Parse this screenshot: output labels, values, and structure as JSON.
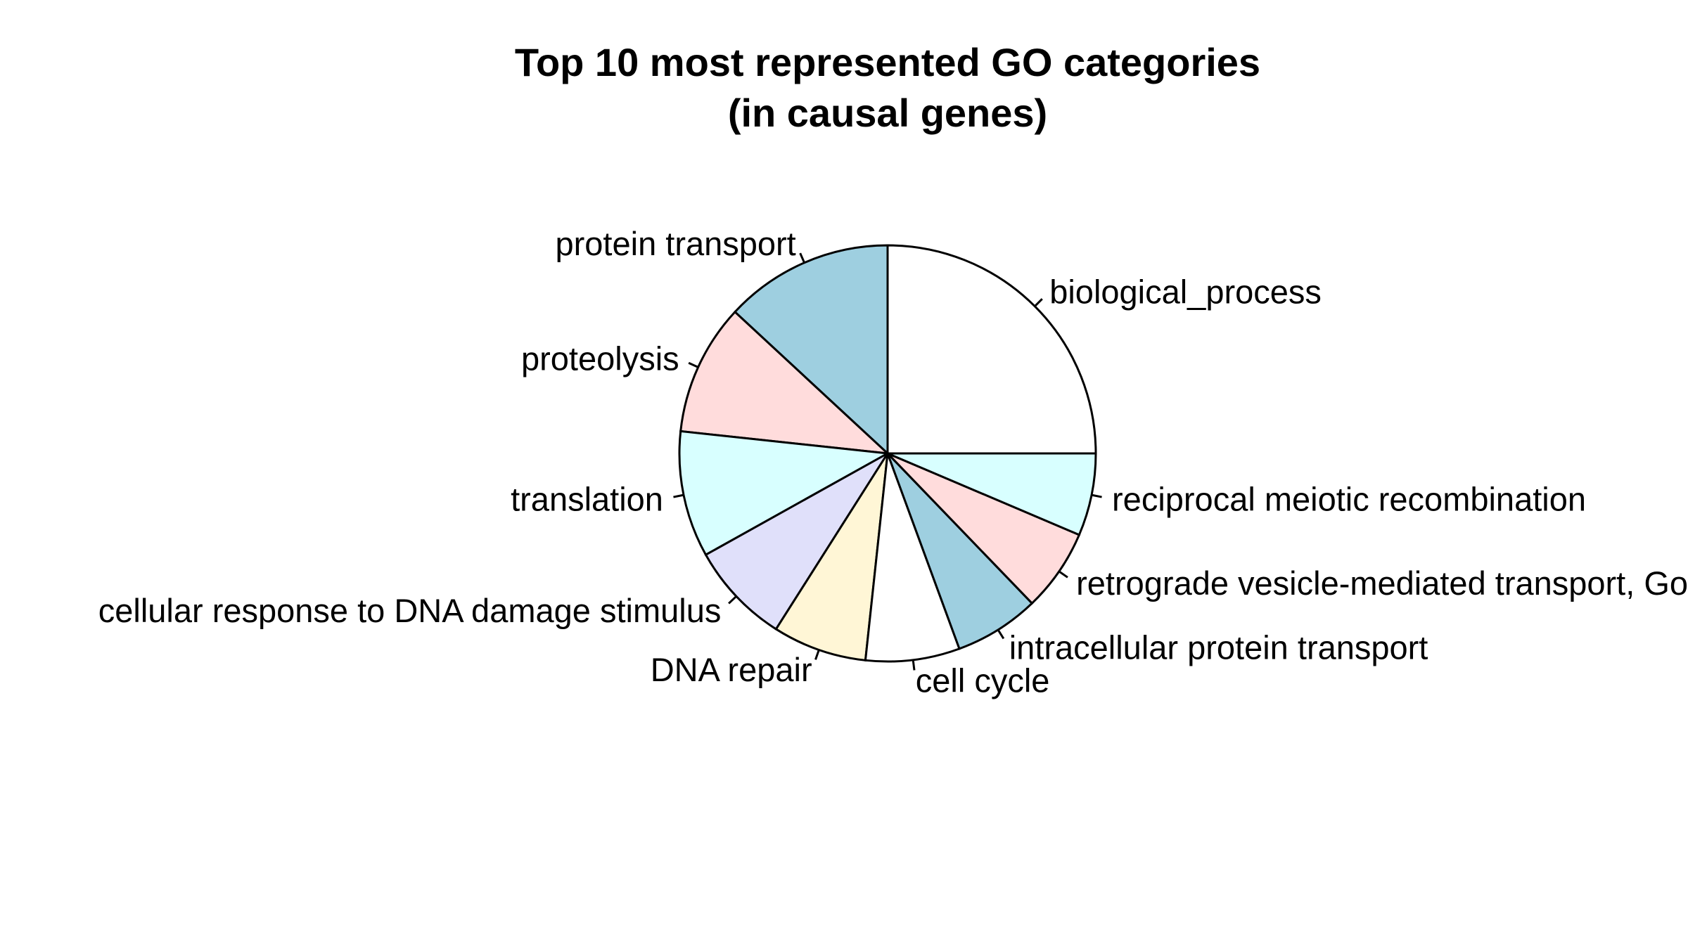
{
  "chart_data": {
    "type": "pie",
    "title_lines": [
      "Top 10 most represented GO categories",
      "(in causal genes)"
    ],
    "start_angle_deg": 0,
    "direction": "counterclockwise",
    "slices": [
      {
        "label": "biological_process",
        "value": 25.0,
        "color": "#ffffff"
      },
      {
        "label": "protein transport",
        "value": 13.1,
        "color": "#9ecfe0"
      },
      {
        "label": "proteolysis",
        "value": 10.2,
        "color": "#ffdcdc"
      },
      {
        "label": "translation",
        "value": 9.8,
        "color": "#d8ffff"
      },
      {
        "label": "cellular response to DNA damage stimulus",
        "value": 7.9,
        "color": "#e0e0fa"
      },
      {
        "label": "DNA repair",
        "value": 7.3,
        "color": "#fff6d6"
      },
      {
        "label": "cell cycle",
        "value": 7.3,
        "color": "#ffffff"
      },
      {
        "label": "intracellular protein transport",
        "value": 6.6,
        "color": "#9ecfe0"
      },
      {
        "label": "retrograde vesicle-mediated transport, Golgi to ER",
        "value": 6.4,
        "color": "#ffdcdc"
      },
      {
        "label": "reciprocal meiotic recombination",
        "value": 6.4,
        "color": "#d8ffff"
      }
    ]
  }
}
